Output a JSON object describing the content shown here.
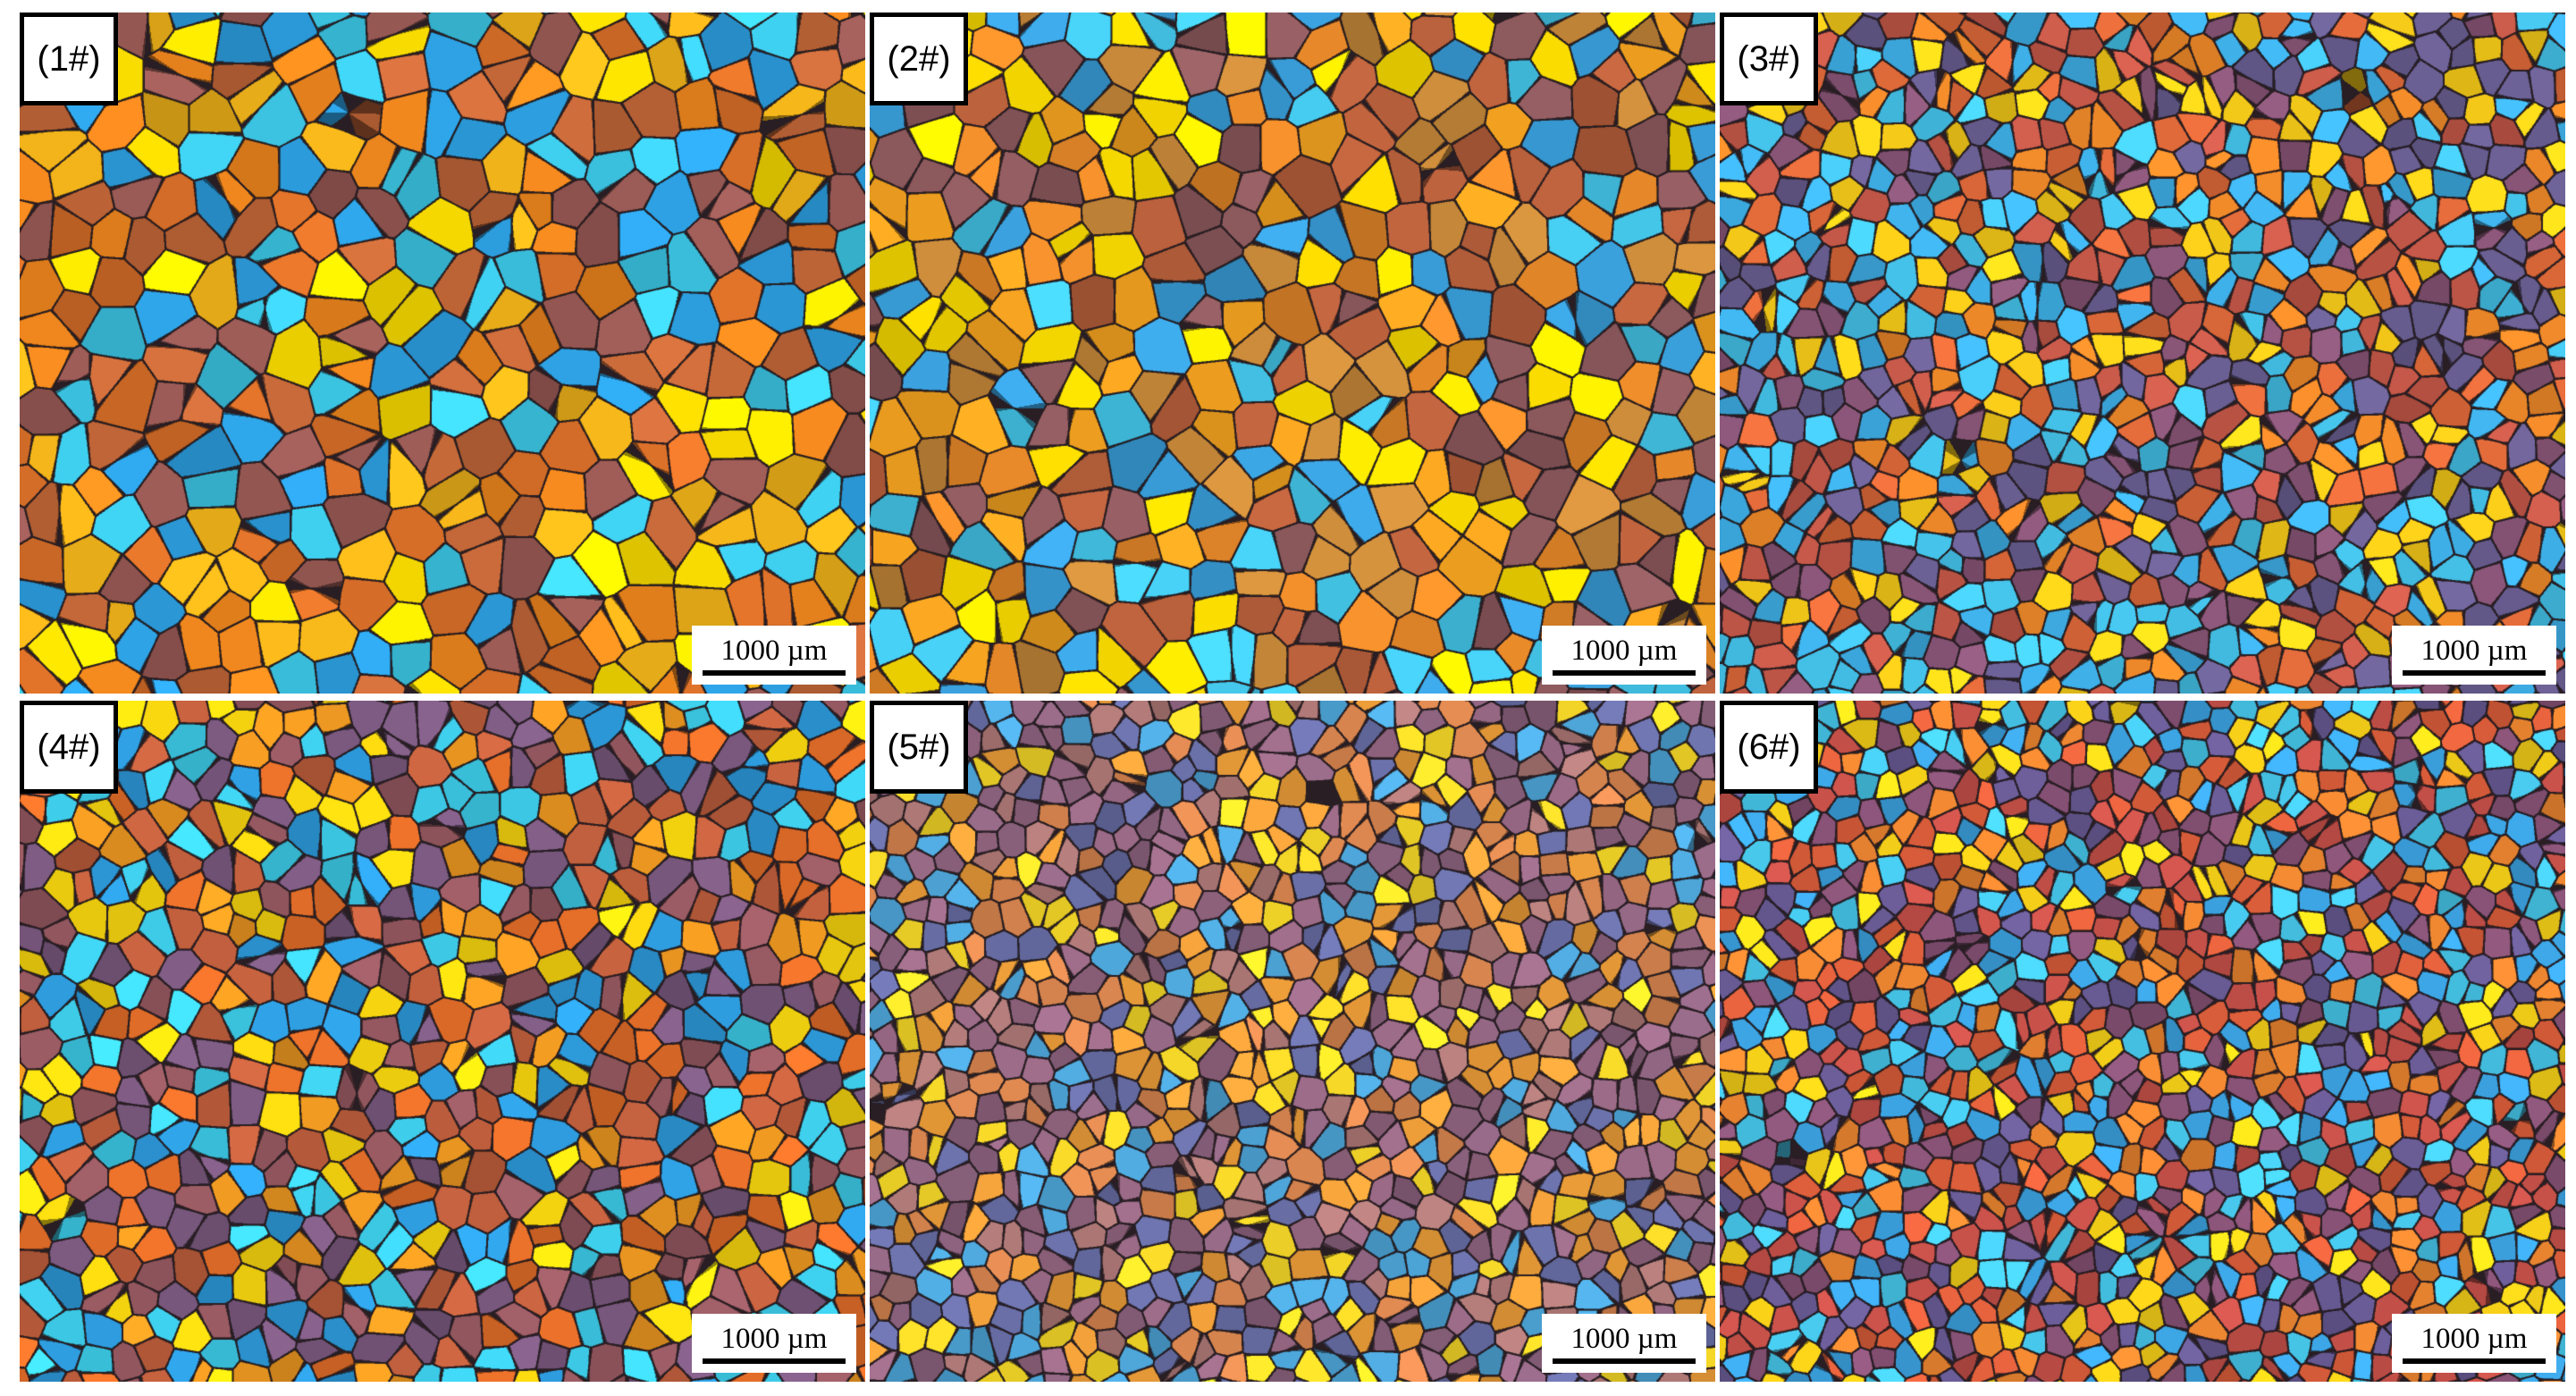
{
  "panels": [
    {
      "label": "(1#)",
      "scale": "1000 µm",
      "palette": [
        "#f58a1f",
        "#e0732a",
        "#ffe100",
        "#2ea3e6",
        "#3fd0f0",
        "#9a5a55",
        "#c86a3a",
        "#f2b41a"
      ]
    },
    {
      "label": "(2#)",
      "scale": "1000 µm",
      "palette": [
        "#e98a2a",
        "#f0a020",
        "#ffe000",
        "#3aa0dc",
        "#8e5a5e",
        "#b8603c",
        "#c98a3a",
        "#45c8ec"
      ]
    },
    {
      "label": "(3#)",
      "scale": "1000 µm",
      "palette": [
        "#e06a3a",
        "#c85a4a",
        "#8a5678",
        "#ffd21a",
        "#3fb0e8",
        "#f08a2a",
        "#6a5f92",
        "#46c6ee"
      ]
    },
    {
      "label": "(4#)",
      "scale": "1000 µm",
      "palette": [
        "#e8702a",
        "#f09a22",
        "#ffdc10",
        "#2f9fe2",
        "#40d4f2",
        "#985a62",
        "#c2603e",
        "#7c5a80"
      ]
    },
    {
      "label": "(5#)",
      "scale": "1000 µm",
      "palette": [
        "#9a6a86",
        "#b07a78",
        "#e08a52",
        "#ffe02a",
        "#4fa8dc",
        "#6a70a8",
        "#f0a03a",
        "#8e6480"
      ]
    },
    {
      "label": "(6#)",
      "scale": "1000 µm",
      "palette": [
        "#e0603c",
        "#c8524a",
        "#8a5478",
        "#ffd81a",
        "#3ea8e8",
        "#f08832",
        "#6a5c96",
        "#48caee"
      ]
    }
  ]
}
